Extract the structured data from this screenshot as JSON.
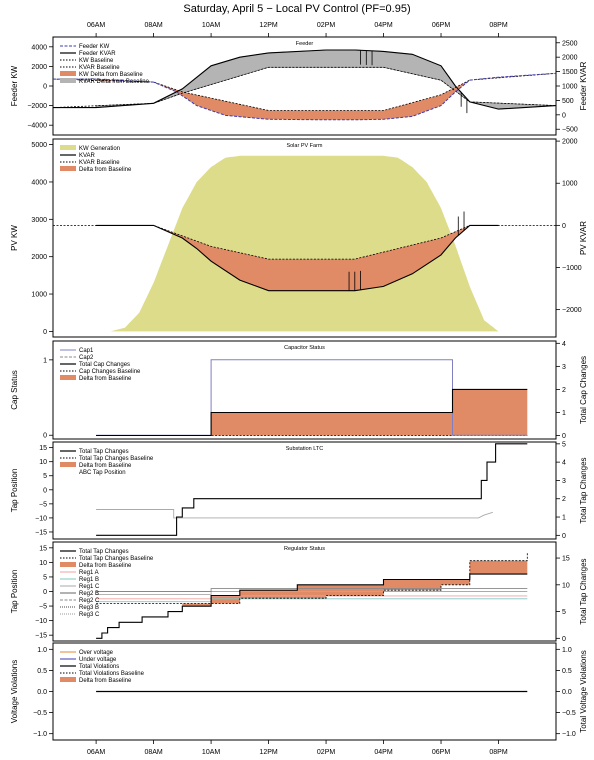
{
  "title": "Saturday, April  5  − Local PV Control (PF=0.95)",
  "time_ticks": [
    "06AM",
    "08AM",
    "10AM",
    "12PM",
    "02PM",
    "04PM",
    "06PM",
    "08PM"
  ],
  "colors": {
    "orange_fill": "#e08a66",
    "yellow_fill": "#dcdc8a",
    "blue": "#3b3bb0",
    "gray_fill": "#b4b4b4",
    "reg_a": "#f2a0a0",
    "reg_b": "#7fc8c0",
    "reg_c": "#aaaaaa"
  },
  "chart_data": [
    {
      "type": "line",
      "title": "Feeder",
      "ylabel": "Feeder KW",
      "y2label": "Feeder KVAR",
      "yticks": [
        "4000",
        "2000",
        "0",
        "−2000",
        "−4000"
      ],
      "y2ticks": [
        "2500",
        "2000",
        "1500",
        "1000",
        "500",
        "0",
        "−500"
      ],
      "ylim": [
        -5000,
        5000
      ],
      "y2lim": [
        -700,
        2700
      ],
      "x_hours": [
        4.5,
        22
      ],
      "legend": [
        "Feeder KW",
        "Feeder KVAR",
        "KW Baseline",
        "KVAR Baseline",
        "KW Delta from Baseline",
        "KVAR Delta from Baseline"
      ],
      "series": [
        {
          "name": "Feeder KW",
          "x": [
            4.5,
            6,
            8,
            8.8,
            9.5,
            10.5,
            12,
            14,
            15,
            16,
            17,
            18,
            18.5,
            19,
            20,
            22
          ],
          "values": [
            700,
            700,
            400,
            -600,
            -2000,
            -3000,
            -3400,
            -3450,
            -3450,
            -3400,
            -3100,
            -2000,
            -600,
            600,
            900,
            1300
          ]
        },
        {
          "name": "Feeder KVAR",
          "x": [
            4.5,
            6,
            8,
            9,
            10,
            11,
            12,
            14,
            15,
            16,
            17,
            18,
            18.5,
            19,
            20,
            22
          ],
          "values": [
            250,
            250,
            400,
            900,
            1700,
            2000,
            2150,
            2250,
            2250,
            2200,
            2100,
            1700,
            1000,
            450,
            200,
            320
          ]
        },
        {
          "name": "KW Baseline",
          "x": [
            4.5,
            8,
            9,
            12,
            16,
            18,
            19,
            22
          ],
          "values": [
            700,
            400,
            -600,
            -2500,
            -2500,
            -900,
            600,
            1300
          ]
        },
        {
          "name": "KVAR Baseline",
          "x": [
            4.5,
            8,
            9,
            12,
            16,
            18,
            19,
            22
          ],
          "values": [
            250,
            400,
            750,
            1650,
            1650,
            1200,
            450,
            320
          ]
        }
      ]
    },
    {
      "type": "area",
      "title": "Solar PV Farm",
      "ylabel": "PV KW",
      "y2label": "PV KVAR",
      "yticks": [
        "5000",
        "4000",
        "3000",
        "2000",
        "1000",
        "0"
      ],
      "y2ticks": [
        "2000",
        "1000",
        "0",
        "−1000",
        "−2000"
      ],
      "ylim": [
        -150,
        5150
      ],
      "y2lim": [
        -2650,
        2050
      ],
      "x_hours": [
        4.5,
        22
      ],
      "legend": [
        "KW Generation",
        "KVAR",
        "KVAR Baseline",
        "Delta from Baseline"
      ],
      "series": [
        {
          "name": "KW Generation",
          "x": [
            5.5,
            6.5,
            7,
            7.5,
            8,
            8.5,
            9,
            9.5,
            10,
            10.5,
            11,
            12,
            15,
            16,
            16.5,
            17,
            17.5,
            18,
            18.5,
            19,
            19.5,
            20
          ],
          "values": [
            0,
            0,
            100,
            500,
            1300,
            2300,
            3300,
            4000,
            4400,
            4650,
            4700,
            4700,
            4700,
            4700,
            4650,
            4400,
            4000,
            3300,
            2300,
            1200,
            300,
            0
          ]
        },
        {
          "name": "KVAR",
          "x": [
            4.5,
            6,
            8,
            9,
            9.5,
            10,
            11,
            12,
            15,
            16,
            17,
            18,
            18.5,
            19,
            20,
            22
          ],
          "values": [
            0,
            0,
            0,
            -300,
            -550,
            -850,
            -1300,
            -1550,
            -1550,
            -1450,
            -1150,
            -700,
            -300,
            0,
            0,
            0
          ]
        },
        {
          "name": "KVAR Baseline",
          "x": [
            4.5,
            8,
            10,
            12,
            15,
            18,
            19,
            22
          ],
          "values": [
            0,
            0,
            -500,
            -800,
            -800,
            -300,
            0,
            0
          ]
        }
      ]
    },
    {
      "type": "line",
      "title": "Capacitor Status",
      "ylabel": "Cap Status",
      "y2label": "Total Cap Changes",
      "yticks": [
        "1",
        "0"
      ],
      "y2ticks": [
        "4",
        "3",
        "2",
        "1",
        "0"
      ],
      "ylim": [
        -0.05,
        1.25
      ],
      "y2lim": [
        -0.15,
        4.1
      ],
      "x_hours": [
        4.5,
        22
      ],
      "legend": [
        "Cap1",
        "Cap2",
        "Total Cap Changes",
        "Cap Changes Baseline",
        "Delta from Baseline"
      ],
      "series": [
        {
          "name": "Cap1",
          "x": [
            6,
            10,
            10,
            18.4,
            18.4,
            21
          ],
          "values": [
            0,
            0,
            1,
            1,
            0,
            0
          ]
        },
        {
          "name": "Total Cap Changes",
          "x": [
            6,
            10,
            10,
            18.4,
            18.4,
            21
          ],
          "values": [
            0,
            0,
            1,
            1,
            2,
            2
          ]
        }
      ]
    },
    {
      "type": "line",
      "title": "Substation LTC",
      "ylabel": "Tap Position",
      "y2label": "Total Tap Changes",
      "yticks": [
        "15",
        "10",
        "5",
        "0",
        "−5",
        "−10",
        "−15"
      ],
      "y2ticks": [
        "5",
        "4",
        "3",
        "2",
        "1",
        "0"
      ],
      "ylim": [
        -17.5,
        17
      ],
      "y2lim": [
        -0.2,
        5.1
      ],
      "x_hours": [
        4.5,
        22
      ],
      "legend": [
        "Total Tap Changes",
        "Total Tap Changes Baseline",
        "Delta from Baseline",
        "ABC Tap Position"
      ],
      "series": [
        {
          "name": "Total Tap Changes",
          "x": [
            6,
            8.8,
            8.8,
            9,
            9,
            9.4,
            9.4,
            19.4,
            19.4,
            19.6,
            19.6,
            19.9,
            19.9,
            21
          ],
          "values": [
            0,
            0,
            1,
            1,
            1.5,
            1.5,
            2,
            2,
            3,
            3,
            4,
            4,
            5,
            5
          ]
        },
        {
          "name": "ABC Tap Position",
          "x": [
            6,
            8.7,
            8.7,
            19.3,
            19.5,
            19.8
          ],
          "values": [
            -7,
            -7,
            -10,
            -10,
            -9,
            -8
          ]
        }
      ]
    },
    {
      "type": "line",
      "title": "Regulator Status",
      "ylabel": "Tap Position",
      "y2label": "Total Tap Changes",
      "yticks": [
        "15",
        "10",
        "5",
        "0",
        "−5",
        "−10",
        "−15"
      ],
      "y2ticks": [
        "15",
        "10",
        "5",
        "0"
      ],
      "ylim": [
        -17,
        17
      ],
      "y2lim": [
        -0.5,
        18
      ],
      "x_hours": [
        4.5,
        22
      ],
      "legend": [
        "Total Tap Changes",
        "Total Tap Changes Baseline",
        "Delta from Baseline",
        "Reg1 A",
        "Reg1 B",
        "Reg1 C",
        "Reg2 B",
        "Reg2 C",
        "Reg3 B",
        "Reg3 C"
      ],
      "series": [
        {
          "name": "Total Tap Changes",
          "x": [
            6,
            6.2,
            6.4,
            6.8,
            7.2,
            7.6,
            8,
            8.5,
            9,
            10,
            11,
            12,
            13,
            14,
            16,
            18,
            19,
            21
          ],
          "values": [
            0,
            1,
            2,
            3,
            3,
            4,
            4,
            5,
            6,
            8,
            9,
            9,
            10,
            10,
            11,
            11,
            12,
            12
          ]
        },
        {
          "name": "Total Tap Changes Baseline",
          "x": [
            6,
            9,
            11,
            14,
            16,
            18,
            19,
            21
          ],
          "values": [
            6.5,
            6.5,
            7.5,
            8,
            9,
            10,
            14.5,
            16
          ]
        }
      ]
    },
    {
      "type": "line",
      "ylabel": "Voltage Violations",
      "y2label": "Total Voltage Violations",
      "yticks": [
        "1.0",
        "0.5",
        "0.0",
        "−0.5",
        "−1.0"
      ],
      "y2ticks": [
        "1.0",
        "0.5",
        "0.0",
        "−0.5",
        "−1.0"
      ],
      "ylim": [
        -1.15,
        1.15
      ],
      "y2lim": [
        -1.15,
        1.15
      ],
      "x_hours": [
        4.5,
        22
      ],
      "legend": [
        "Over voltage",
        "Under voltage",
        "Total Violations",
        "Total Violations Baseline",
        "Delta from Baseline"
      ],
      "series": [
        {
          "name": "Total Violations",
          "x": [
            6,
            21
          ],
          "values": [
            0,
            0
          ]
        }
      ]
    }
  ]
}
